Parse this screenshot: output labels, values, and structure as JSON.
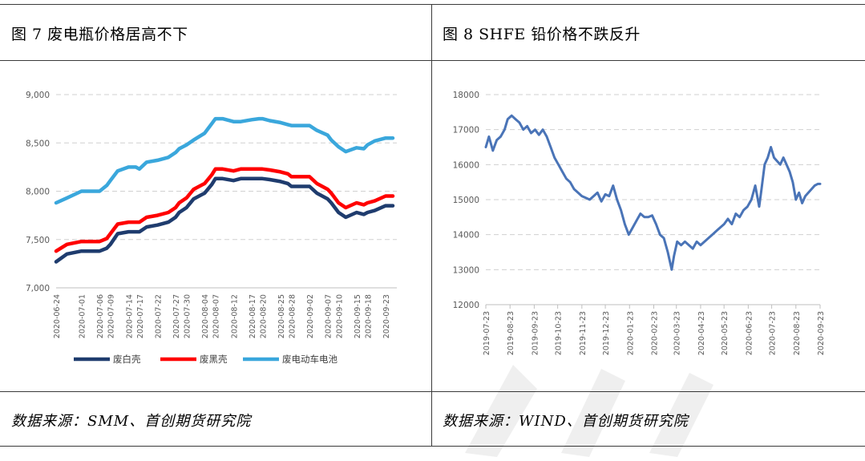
{
  "left_panel": {
    "title": "图 7 废电瓶价格居高不下",
    "source": "数据来源：SMM、首创期货研究院"
  },
  "right_panel": {
    "title": "图 8 SHFE 铅价格不跌反升",
    "source": "数据来源：WIND、首创期货研究院"
  },
  "colors": {
    "dark_navy": "#1f3c6e",
    "red": "#ff0000",
    "light_blue": "#3aa7dc",
    "steel_blue": "#4a74b7",
    "grid": "#d0d0d0",
    "axis": "#bfbfbf"
  },
  "chart_data": [
    {
      "type": "line",
      "x": [
        "2020-06-24",
        "2020-06-27",
        "2020-07-01",
        "2020-07-03",
        "2020-07-06",
        "2020-07-08",
        "2020-07-09",
        "2020-07-11",
        "2020-07-14",
        "2020-07-16",
        "2020-07-17",
        "2020-07-19",
        "2020-07-22",
        "2020-07-25",
        "2020-07-27",
        "2020-07-28",
        "2020-07-30",
        "2020-08-01",
        "2020-08-04",
        "2020-08-06",
        "2020-08-07",
        "2020-08-09",
        "2020-08-12",
        "2020-08-14",
        "2020-08-17",
        "2020-08-19",
        "2020-08-20",
        "2020-08-22",
        "2020-08-25",
        "2020-08-27",
        "2020-08-28",
        "2020-08-30",
        "2020-09-02",
        "2020-09-04",
        "2020-09-07",
        "2020-09-08",
        "2020-09-10",
        "2020-09-12",
        "2020-09-15",
        "2020-09-17",
        "2020-09-18",
        "2020-09-20",
        "2020-09-23",
        "2020-09-25"
      ],
      "x_ticks": [
        "2020-06-24",
        "2020-07-01",
        "2020-07-06",
        "2020-07-09",
        "2020-07-14",
        "2020-07-17",
        "2020-07-22",
        "2020-07-27",
        "2020-07-30",
        "2020-08-04",
        "2020-08-07",
        "2020-08-12",
        "2020-08-17",
        "2020-08-20",
        "2020-08-25",
        "2020-08-28",
        "2020-09-02",
        "2020-09-07",
        "2020-09-10",
        "2020-09-15",
        "2020-09-18",
        "2020-09-23"
      ],
      "series": [
        {
          "name": "废白壳",
          "color": "#1f3c6e",
          "values": [
            7270,
            7350,
            7380,
            7380,
            7380,
            7410,
            7450,
            7560,
            7580,
            7580,
            7580,
            7630,
            7650,
            7680,
            7730,
            7780,
            7830,
            7920,
            7980,
            8070,
            8130,
            8130,
            8110,
            8130,
            8130,
            8130,
            8130,
            8120,
            8100,
            8080,
            8050,
            8050,
            8050,
            7980,
            7920,
            7880,
            7780,
            7730,
            7780,
            7760,
            7780,
            7800,
            7850,
            7850
          ]
        },
        {
          "name": "废黑壳",
          "color": "#ff0000",
          "values": [
            7380,
            7450,
            7480,
            7480,
            7480,
            7510,
            7560,
            7660,
            7680,
            7680,
            7680,
            7730,
            7750,
            7780,
            7830,
            7880,
            7930,
            8020,
            8080,
            8170,
            8230,
            8230,
            8210,
            8230,
            8230,
            8230,
            8230,
            8220,
            8200,
            8180,
            8150,
            8150,
            8150,
            8080,
            8020,
            7980,
            7880,
            7830,
            7880,
            7860,
            7880,
            7900,
            7950,
            7950
          ]
        },
        {
          "name": "废电动车电池",
          "color": "#3aa7dc",
          "values": [
            7880,
            7930,
            8000,
            8000,
            8000,
            8060,
            8110,
            8210,
            8250,
            8250,
            8230,
            8300,
            8320,
            8350,
            8400,
            8440,
            8480,
            8530,
            8600,
            8700,
            8750,
            8750,
            8720,
            8720,
            8740,
            8750,
            8750,
            8730,
            8710,
            8690,
            8680,
            8680,
            8680,
            8630,
            8580,
            8530,
            8460,
            8410,
            8450,
            8440,
            8480,
            8520,
            8550,
            8550
          ]
        }
      ],
      "ylim": [
        7000,
        9000
      ],
      "y_ticks": [
        7000,
        7500,
        8000,
        8500,
        9000
      ],
      "y_tick_labels": [
        "7,000",
        "7,500",
        "8,000",
        "8,500",
        "9,000"
      ],
      "grid": true,
      "legend": "bottom"
    },
    {
      "type": "line",
      "x_ticks": [
        "2019-07-23",
        "2019-08-23",
        "2019-09-23",
        "2019-10-23",
        "2019-11-23",
        "2019-12-23",
        "2020-01-23",
        "2020-02-23",
        "2020-03-23",
        "2020-04-23",
        "2020-05-23",
        "2020-06-23",
        "2020-07-23",
        "2020-08-23",
        "2020-09-23"
      ],
      "series": [
        {
          "name": "",
          "color": "#4a74b7",
          "x": [
            "2019-07-23",
            "2019-07-27",
            "2019-08-01",
            "2019-08-06",
            "2019-08-11",
            "2019-08-16",
            "2019-08-20",
            "2019-08-25",
            "2019-08-30",
            "2019-09-04",
            "2019-09-09",
            "2019-09-14",
            "2019-09-19",
            "2019-09-24",
            "2019-09-29",
            "2019-10-04",
            "2019-10-09",
            "2019-10-14",
            "2019-10-19",
            "2019-10-24",
            "2019-10-29",
            "2019-11-03",
            "2019-11-08",
            "2019-11-13",
            "2019-11-18",
            "2019-11-23",
            "2019-11-28",
            "2019-12-03",
            "2019-12-08",
            "2019-12-13",
            "2019-12-18",
            "2019-12-23",
            "2019-12-28",
            "2020-01-02",
            "2020-01-07",
            "2020-01-12",
            "2020-01-17",
            "2020-01-22",
            "2020-01-27",
            "2020-02-01",
            "2020-02-06",
            "2020-02-11",
            "2020-02-16",
            "2020-02-21",
            "2020-02-26",
            "2020-03-02",
            "2020-03-07",
            "2020-03-12",
            "2020-03-17",
            "2020-03-20",
            "2020-03-24",
            "2020-03-29",
            "2020-04-03",
            "2020-04-08",
            "2020-04-13",
            "2020-04-18",
            "2020-04-23",
            "2020-04-28",
            "2020-05-03",
            "2020-05-08",
            "2020-05-13",
            "2020-05-18",
            "2020-05-23",
            "2020-05-28",
            "2020-06-02",
            "2020-06-07",
            "2020-06-12",
            "2020-06-17",
            "2020-06-22",
            "2020-06-27",
            "2020-07-02",
            "2020-07-07",
            "2020-07-10",
            "2020-07-14",
            "2020-07-18",
            "2020-07-22",
            "2020-07-26",
            "2020-07-30",
            "2020-08-03",
            "2020-08-07",
            "2020-08-11",
            "2020-08-15",
            "2020-08-19",
            "2020-08-23",
            "2020-08-27",
            "2020-08-31",
            "2020-09-04",
            "2020-09-08",
            "2020-09-12",
            "2020-09-16",
            "2020-09-20",
            "2020-09-23"
          ],
          "y": [
            16500,
            16800,
            16400,
            16700,
            16800,
            17000,
            17300,
            17400,
            17300,
            17200,
            17000,
            17100,
            16900,
            17000,
            16850,
            17000,
            16800,
            16500,
            16200,
            16000,
            15800,
            15600,
            15500,
            15300,
            15200,
            15100,
            15050,
            15000,
            15100,
            15200,
            14950,
            15150,
            15100,
            15400,
            15000,
            14700,
            14300,
            14000,
            14200,
            14400,
            14600,
            14500,
            14500,
            14550,
            14300,
            14000,
            13900,
            13500,
            13000,
            13400,
            13800,
            13700,
            13800,
            13700,
            13600,
            13800,
            13700,
            13800,
            13900,
            14000,
            14100,
            14200,
            14300,
            14450,
            14300,
            14600,
            14500,
            14700,
            14800,
            15000,
            15400,
            14800,
            15300,
            16000,
            16200,
            16500,
            16200,
            16100,
            16000,
            16200,
            16000,
            15800,
            15500,
            15000,
            15200,
            14900,
            15100,
            15200,
            15300,
            15400,
            15450,
            15450
          ]
        }
      ],
      "ylim": [
        12000,
        18000
      ],
      "y_ticks": [
        12000,
        13000,
        14000,
        15000,
        16000,
        17000,
        18000
      ],
      "grid": true
    }
  ]
}
